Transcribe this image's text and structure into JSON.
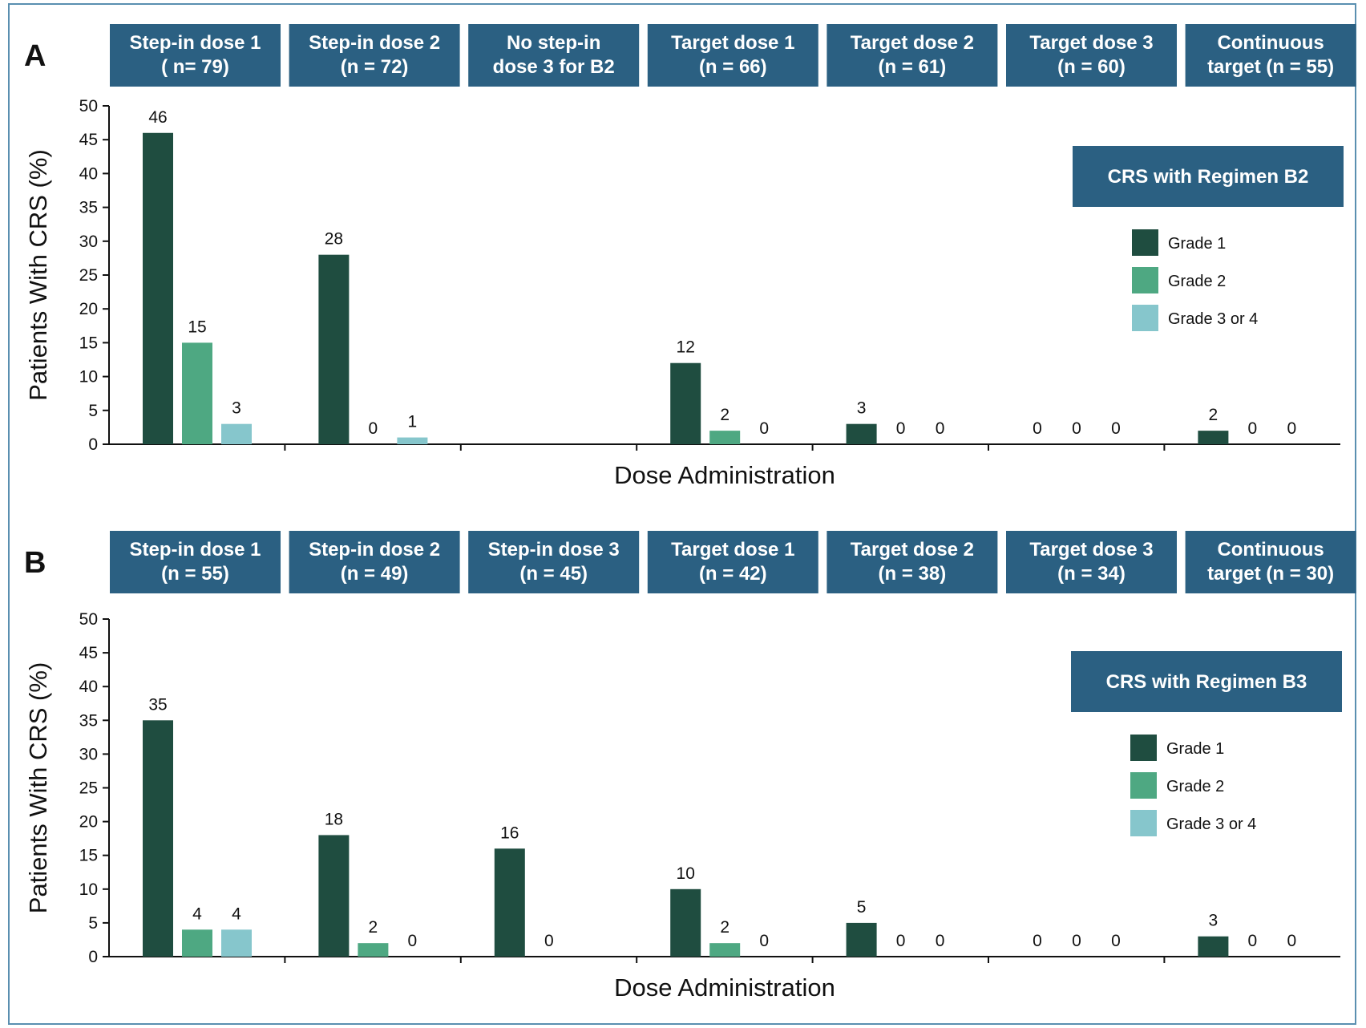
{
  "chart_data": [
    {
      "panel": "A",
      "type": "bar",
      "legend_title": "CRS with Regimen B2",
      "ylabel": "Patients With CRS (%)",
      "xlabel": "Dose Administration",
      "ylim": [
        0,
        50
      ],
      "yticks": [
        0,
        5,
        10,
        15,
        20,
        25,
        30,
        35,
        40,
        45,
        50
      ],
      "categories": [
        [
          "Step-in dose 1",
          "( n= 79)"
        ],
        [
          "Step-in dose 2",
          "(n = 72)"
        ],
        [
          "No step-in",
          "dose 3 for B2"
        ],
        [
          "Target dose 1",
          "(n = 66)"
        ],
        [
          "Target dose 2",
          "(n = 61)"
        ],
        [
          "Target dose 3",
          "(n = 60)"
        ],
        [
          "Continuous",
          "target (n = 55)"
        ]
      ],
      "series": [
        {
          "name": "Grade 1",
          "color": "#1f4d40",
          "values": [
            46,
            28,
            null,
            12,
            3,
            0,
            2
          ]
        },
        {
          "name": "Grade 2",
          "color": "#4ea882",
          "values": [
            15,
            0,
            null,
            2,
            0,
            0,
            0
          ]
        },
        {
          "name": "Grade 3 or 4",
          "color": "#86c6cc",
          "values": [
            3,
            1,
            null,
            0,
            0,
            0,
            0
          ]
        }
      ]
    },
    {
      "panel": "B",
      "type": "bar",
      "legend_title": "CRS with Regimen B3",
      "ylabel": "Patients With CRS (%)",
      "xlabel": "Dose Administration",
      "ylim": [
        0,
        50
      ],
      "yticks": [
        0,
        5,
        10,
        15,
        20,
        25,
        30,
        35,
        40,
        45,
        50
      ],
      "categories": [
        [
          "Step-in dose 1",
          "(n = 55)"
        ],
        [
          "Step-in dose 2",
          "(n = 49)"
        ],
        [
          "Step-in dose 3",
          "(n = 45)"
        ],
        [
          "Target dose 1",
          "(n = 42)"
        ],
        [
          "Target dose 2",
          "(n = 38)"
        ],
        [
          "Target dose 3",
          "(n = 34)"
        ],
        [
          "Continuous",
          "target (n = 30)"
        ]
      ],
      "series": [
        {
          "name": "Grade 1",
          "color": "#1f4d40",
          "values": [
            35,
            18,
            16,
            10,
            5,
            0,
            3
          ]
        },
        {
          "name": "Grade 2",
          "color": "#4ea882",
          "values": [
            4,
            2,
            0,
            2,
            0,
            0,
            0
          ]
        },
        {
          "name": "Grade 3 or 4",
          "color": "#86c6cc",
          "values": [
            4,
            0,
            null,
            0,
            0,
            0,
            0
          ]
        }
      ]
    }
  ],
  "colors": {
    "header_bg": "#2b6082",
    "legend_title_bg": "#2b6082"
  }
}
